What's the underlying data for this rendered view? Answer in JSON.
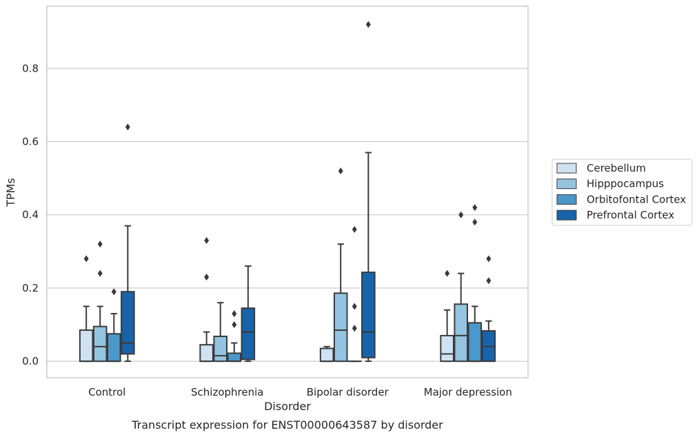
{
  "chart_data": {
    "type": "box",
    "title": "",
    "caption": "Transcript expression for ENST00000643587 by disorder",
    "xlabel": "Disorder",
    "ylabel": "TPMs",
    "ylim": [
      -0.045,
      0.97
    ],
    "yticks": [
      0.0,
      0.2,
      0.4,
      0.6,
      0.8
    ],
    "ytick_labels": [
      "0.0",
      "0.2",
      "0.4",
      "0.6",
      "0.8"
    ],
    "grid": "horizontal",
    "legend_position": "right",
    "categories": [
      "Control",
      "Schizophrenia",
      "Bipolar disorder",
      "Major depression"
    ],
    "series": [
      {
        "name": "Cerebellum",
        "color": "#d0e1f2",
        "boxes": [
          {
            "min": 0.0,
            "q1": 0.0,
            "median": 0.0,
            "q3": 0.085,
            "max": 0.15,
            "outliers": [
              0.28
            ]
          },
          {
            "min": 0.0,
            "q1": 0.0,
            "median": 0.0,
            "q3": 0.045,
            "max": 0.08,
            "outliers": [
              0.23,
              0.33
            ]
          },
          {
            "min": 0.0,
            "q1": 0.0,
            "median": 0.0,
            "q3": 0.035,
            "max": 0.04,
            "outliers": []
          },
          {
            "min": 0.0,
            "q1": 0.0,
            "median": 0.02,
            "q3": 0.07,
            "max": 0.14,
            "outliers": [
              0.24
            ]
          }
        ]
      },
      {
        "name": "Hipppocampus",
        "color": "#94c4df",
        "boxes": [
          {
            "min": 0.0,
            "q1": 0.0,
            "median": 0.04,
            "q3": 0.095,
            "max": 0.15,
            "outliers": [
              0.24,
              0.32
            ]
          },
          {
            "min": 0.0,
            "q1": 0.0,
            "median": 0.015,
            "q3": 0.068,
            "max": 0.16,
            "outliers": []
          },
          {
            "min": 0.0,
            "q1": 0.0,
            "median": 0.085,
            "q3": 0.186,
            "max": 0.32,
            "outliers": [
              0.52
            ]
          },
          {
            "min": 0.0,
            "q1": 0.0,
            "median": 0.07,
            "q3": 0.156,
            "max": 0.24,
            "outliers": [
              0.4
            ]
          }
        ]
      },
      {
        "name": "Orbitofontal Cortex",
        "color": "#4a98c9",
        "boxes": [
          {
            "min": 0.0,
            "q1": 0.0,
            "median": 0.0,
            "q3": 0.075,
            "max": 0.13,
            "outliers": [
              0.19
            ]
          },
          {
            "min": 0.0,
            "q1": 0.0,
            "median": 0.0,
            "q3": 0.022,
            "max": 0.05,
            "outliers": [
              0.1,
              0.13
            ]
          },
          {
            "min": 0.0,
            "q1": 0.0,
            "median": 0.0,
            "q3": 0.0,
            "max": 0.0,
            "outliers": [
              0.09,
              0.15,
              0.36
            ]
          },
          {
            "min": 0.0,
            "q1": 0.0,
            "median": 0.0,
            "q3": 0.105,
            "max": 0.15,
            "outliers": [
              0.38,
              0.42
            ]
          }
        ]
      },
      {
        "name": "Prefrontal Cortex",
        "color": "#1764ab",
        "boxes": [
          {
            "min": 0.0,
            "q1": 0.02,
            "median": 0.05,
            "q3": 0.19,
            "max": 0.37,
            "outliers": [
              0.64
            ]
          },
          {
            "min": 0.0,
            "q1": 0.005,
            "median": 0.08,
            "q3": 0.145,
            "max": 0.26,
            "outliers": []
          },
          {
            "min": 0.0,
            "q1": 0.01,
            "median": 0.08,
            "q3": 0.243,
            "max": 0.57,
            "outliers": [
              0.92
            ]
          },
          {
            "min": 0.0,
            "q1": 0.0,
            "median": 0.04,
            "q3": 0.083,
            "max": 0.11,
            "outliers": [
              0.22,
              0.28
            ]
          }
        ]
      }
    ]
  }
}
